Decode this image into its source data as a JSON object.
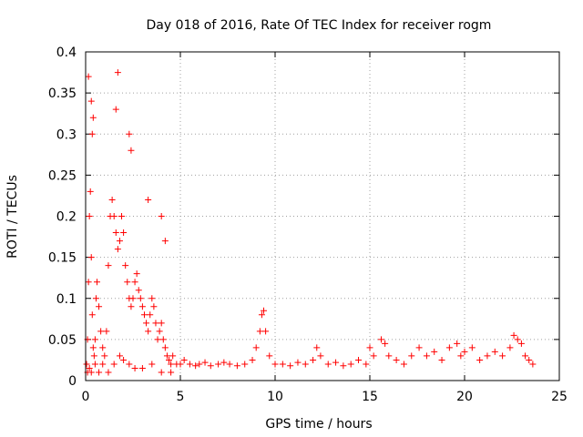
{
  "chart_data": {
    "type": "scatter",
    "title": "Day 018 of 2016, Rate Of TEC Index for receiver rogm",
    "xlabel": "GPS time / hours",
    "ylabel": "ROTI / TECUs",
    "xlim": [
      0,
      25
    ],
    "ylim": [
      0,
      0.4
    ],
    "xticks": [
      0,
      5,
      10,
      15,
      20,
      25
    ],
    "xtick_labels": [
      "0",
      "5",
      "10",
      "15",
      "20",
      "25"
    ],
    "yticks": [
      0,
      0.05,
      0.1,
      0.15,
      0.2,
      0.25,
      0.3,
      0.35,
      0.4
    ],
    "ytick_labels": [
      "0",
      "0.05",
      "0.1",
      "0.15",
      "0.2",
      "0.25",
      "0.3",
      "0.35",
      "0.4"
    ],
    "grid": true,
    "marker": "+",
    "series": [
      {
        "name": "ROTI",
        "color": "#ff0000",
        "x": [
          0.05,
          0.1,
          0.15,
          0.2,
          0.25,
          0.3,
          0.35,
          0.4,
          0.45,
          0.5,
          0.55,
          0.6,
          0.7,
          0.8,
          0.9,
          1.0,
          1.1,
          1.2,
          1.3,
          1.4,
          1.5,
          1.6,
          1.7,
          1.8,
          1.9,
          2.0,
          2.1,
          2.2,
          2.3,
          2.4,
          2.5,
          2.6,
          2.7,
          2.8,
          2.9,
          3.0,
          3.1,
          3.2,
          3.3,
          3.4,
          3.5,
          3.6,
          3.7,
          3.8,
          3.9,
          4.0,
          4.1,
          4.2,
          4.3,
          4.4,
          4.5,
          4.6,
          4.8,
          5.0,
          5.2,
          5.5,
          5.8,
          6.0,
          6.3,
          6.6,
          7.0,
          7.3,
          7.6,
          8.0,
          8.4,
          8.8,
          9.0,
          9.2,
          9.3,
          9.4,
          9.5,
          9.7,
          10.0,
          10.4,
          10.8,
          11.2,
          11.6,
          12.0,
          12.2,
          12.4,
          12.8,
          13.2,
          13.6,
          14.0,
          14.4,
          14.8,
          15.0,
          15.2,
          15.6,
          15.8,
          16.0,
          16.4,
          16.8,
          17.2,
          17.6,
          18.0,
          18.4,
          18.8,
          19.2,
          19.6,
          19.8,
          20.0,
          20.4,
          20.8,
          21.2,
          21.6,
          22.0,
          22.4,
          22.6,
          22.8,
          23.0,
          23.2,
          23.4,
          23.6,
          0.1,
          0.2,
          0.3,
          0.5,
          0.7,
          0.9,
          1.2,
          1.5,
          1.8,
          2.0,
          2.3,
          2.6,
          3.0,
          3.5,
          4.0,
          4.5,
          0.15,
          0.3,
          1.6,
          1.7,
          0.35,
          0.4,
          2.3,
          2.4,
          3.3,
          4.0,
          4.2
        ],
        "y": [
          0.02,
          0.05,
          0.12,
          0.2,
          0.23,
          0.15,
          0.08,
          0.04,
          0.03,
          0.05,
          0.1,
          0.12,
          0.09,
          0.06,
          0.04,
          0.03,
          0.06,
          0.14,
          0.2,
          0.22,
          0.2,
          0.18,
          0.16,
          0.17,
          0.2,
          0.18,
          0.14,
          0.12,
          0.1,
          0.09,
          0.1,
          0.12,
          0.13,
          0.11,
          0.1,
          0.09,
          0.08,
          0.07,
          0.06,
          0.08,
          0.1,
          0.09,
          0.07,
          0.05,
          0.06,
          0.07,
          0.05,
          0.04,
          0.03,
          0.025,
          0.02,
          0.03,
          0.02,
          0.02,
          0.025,
          0.02,
          0.018,
          0.02,
          0.022,
          0.018,
          0.02,
          0.022,
          0.02,
          0.018,
          0.02,
          0.025,
          0.04,
          0.06,
          0.08,
          0.085,
          0.06,
          0.03,
          0.02,
          0.02,
          0.018,
          0.022,
          0.02,
          0.025,
          0.04,
          0.03,
          0.02,
          0.022,
          0.018,
          0.02,
          0.025,
          0.02,
          0.04,
          0.03,
          0.05,
          0.045,
          0.03,
          0.025,
          0.02,
          0.03,
          0.04,
          0.03,
          0.035,
          0.025,
          0.04,
          0.045,
          0.03,
          0.035,
          0.04,
          0.025,
          0.03,
          0.035,
          0.03,
          0.04,
          0.055,
          0.05,
          0.045,
          0.03,
          0.025,
          0.02,
          0.01,
          0.015,
          0.01,
          0.02,
          0.01,
          0.02,
          0.01,
          0.02,
          0.03,
          0.025,
          0.02,
          0.015,
          0.015,
          0.02,
          0.01,
          0.01,
          0.37,
          0.34,
          0.33,
          0.375,
          0.3,
          0.32,
          0.3,
          0.28,
          0.22,
          0.2,
          0.17
        ]
      }
    ]
  }
}
